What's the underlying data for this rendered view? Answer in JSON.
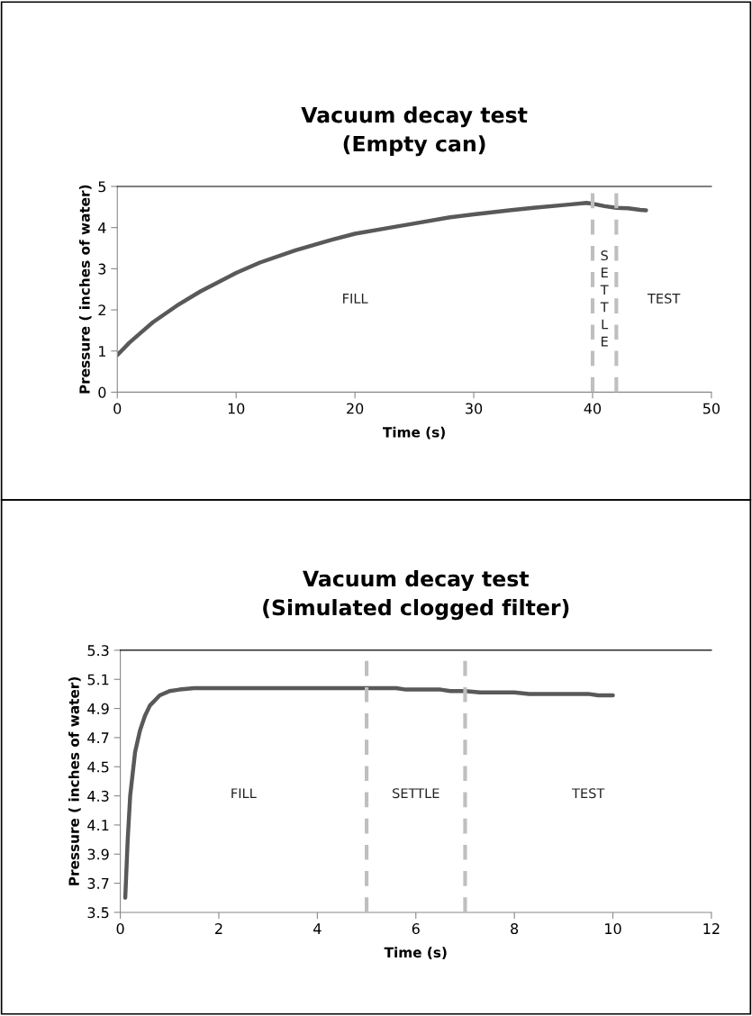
{
  "chart_data": [
    {
      "type": "line",
      "title": "Vacuum decay test\n(Empty can)",
      "xlabel": "Time (s)",
      "ylabel": "Pressure ( inches of water)",
      "xlim": [
        0,
        50
      ],
      "xticks": [
        0,
        10,
        20,
        30,
        40,
        50
      ],
      "ylim": [
        0,
        5
      ],
      "yticks": [
        0,
        1,
        2,
        3,
        4,
        5
      ],
      "grid": false,
      "legend": false,
      "marker": "none",
      "line_style": "solid",
      "series": [
        {
          "color": "#595959",
          "x": [
            0,
            0.5,
            1,
            2,
            3,
            5,
            7,
            10,
            12,
            15,
            18,
            20,
            23,
            25,
            28,
            30,
            33,
            35,
            38,
            39.5,
            40,
            41,
            42,
            43,
            44,
            44.5
          ],
          "values": [
            0.9,
            1.05,
            1.2,
            1.45,
            1.7,
            2.1,
            2.45,
            2.9,
            3.15,
            3.45,
            3.7,
            3.85,
            4.0,
            4.1,
            4.25,
            4.32,
            4.42,
            4.48,
            4.56,
            4.6,
            4.58,
            4.52,
            4.48,
            4.47,
            4.43,
            4.42
          ]
        }
      ],
      "ref_lines": [
        {
          "axis": "x",
          "value": 40,
          "color": "#bfbfbf",
          "line_style": "dashed"
        },
        {
          "axis": "x",
          "value": 42,
          "color": "#bfbfbf",
          "line_style": "dashed"
        }
      ],
      "annotations": [
        "FILL",
        "S\nE\nT\nT\nL\nE",
        "TEST"
      ]
    },
    {
      "type": "line",
      "title": "Vacuum decay test\n(Simulated clogged filter)",
      "xlabel": "Time (s)",
      "ylabel": "Pressure ( inches of water)",
      "xlim": [
        0,
        12
      ],
      "xticks": [
        0,
        2,
        4,
        6,
        8,
        10,
        12
      ],
      "ylim": [
        3.5,
        5.3
      ],
      "yticks": [
        3.5,
        3.7,
        3.9,
        4.1,
        4.3,
        4.5,
        4.7,
        4.9,
        5.1,
        5.3
      ],
      "grid": false,
      "legend": false,
      "marker": "none",
      "line_style": "solid",
      "series": [
        {
          "color": "#595959",
          "x": [
            0.1,
            0.15,
            0.2,
            0.3,
            0.4,
            0.5,
            0.6,
            0.8,
            1.0,
            1.2,
            1.5,
            3,
            5,
            5.6,
            5.8,
            6.5,
            6.7,
            7,
            7.3,
            8,
            8.3,
            9.5,
            9.7,
            10
          ],
          "values": [
            3.6,
            4.0,
            4.3,
            4.6,
            4.75,
            4.85,
            4.92,
            4.99,
            5.02,
            5.03,
            5.04,
            5.04,
            5.04,
            5.04,
            5.03,
            5.03,
            5.02,
            5.02,
            5.01,
            5.01,
            5.0,
            5.0,
            4.99,
            4.99
          ]
        }
      ],
      "ref_lines": [
        {
          "axis": "x",
          "value": 5,
          "color": "#bfbfbf",
          "line_style": "dashed"
        },
        {
          "axis": "x",
          "value": 7,
          "color": "#bfbfbf",
          "line_style": "dashed"
        }
      ],
      "annotations": [
        "FILL",
        "SETTLE",
        "TEST"
      ]
    }
  ]
}
